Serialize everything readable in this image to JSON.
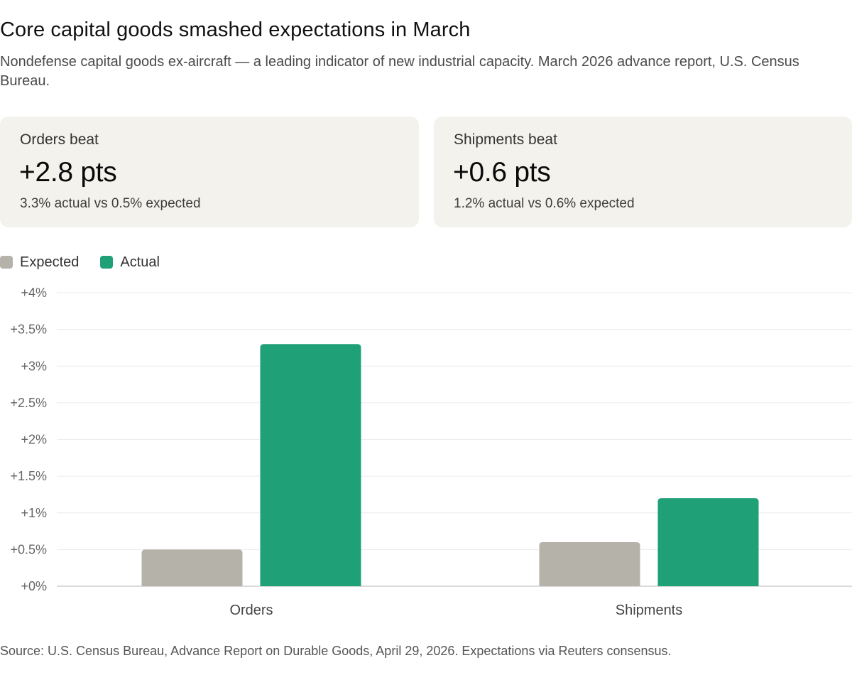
{
  "header": {
    "title": "Core capital goods smashed expectations in March",
    "subtitle": "Nondefense capital goods ex-aircraft — a leading indicator of new industrial capacity. March 2026 advance report, U.S. Census Bureau."
  },
  "cards": [
    {
      "label": "Orders beat",
      "value": "+2.8 pts",
      "detail": "3.3% actual vs 0.5% expected"
    },
    {
      "label": "Shipments beat",
      "value": "+0.6 pts",
      "detail": "1.2% actual vs 0.6% expected"
    }
  ],
  "legend": {
    "expected": "Expected",
    "actual": "Actual"
  },
  "colors": {
    "expected": "#b5b2aa",
    "actual": "#1fa077",
    "card_bg": "#f4f2ec"
  },
  "chart_data": {
    "type": "bar",
    "title": "Core capital goods smashed expectations in March",
    "categories": [
      "Orders",
      "Shipments"
    ],
    "series": [
      {
        "name": "Expected",
        "values": [
          0.5,
          0.6
        ]
      },
      {
        "name": "Actual",
        "values": [
          3.3,
          1.2
        ]
      }
    ],
    "ylim": [
      0,
      4
    ],
    "yticks": [
      0,
      0.5,
      1,
      1.5,
      2,
      2.5,
      3,
      3.5,
      4
    ],
    "ytick_labels": [
      "+0%",
      "+0.5%",
      "+1%",
      "+1.5%",
      "+2%",
      "+2.5%",
      "+3%",
      "+3.5%",
      "+4%"
    ],
    "xlabel": "",
    "ylabel": "",
    "grid": true,
    "legend_position": "top-left"
  },
  "footer": {
    "source": "Source: U.S. Census Bureau, Advance Report on Durable Goods, April 29, 2026. Expectations via Reuters consensus."
  }
}
